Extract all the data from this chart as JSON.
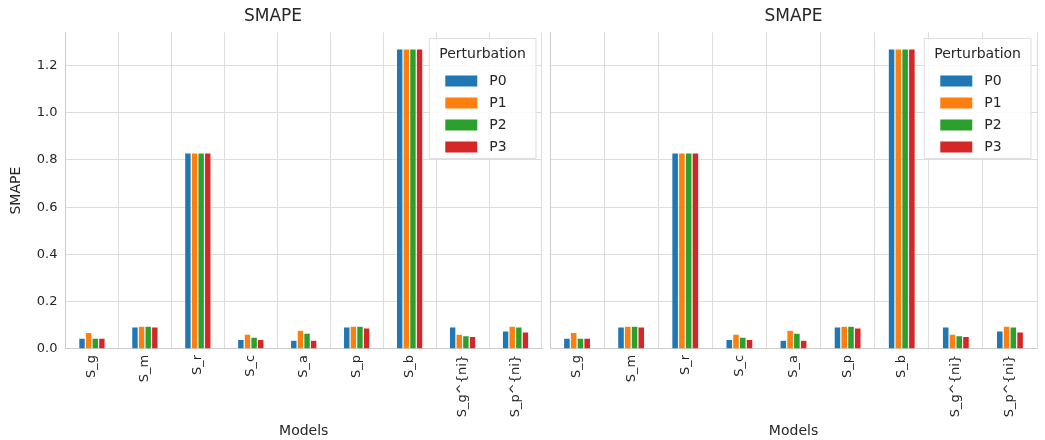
{
  "chart_data": [
    {
      "type": "bar",
      "title": "SMAPE",
      "xlabel": "Models",
      "ylabel": "SMAPE",
      "legend_title": "Perturbation",
      "legend": "top right",
      "grid": true,
      "categories": [
        "S_g",
        "S_m",
        "S_r",
        "S_c",
        "S_a",
        "S_p",
        "S_b",
        "S_g^{ni}",
        "S_p^{ni}"
      ],
      "ylim": [
        0,
        1.34
      ],
      "yticks": [
        {
          "value": 0,
          "label": "0.0"
        },
        0.2,
        0.4,
        0.6,
        0.8,
        {
          "value": 1,
          "label": "1.0"
        },
        1.2
      ],
      "series": [
        {
          "name": "P0",
          "color": "#1f77b4",
          "values": [
            0.046,
            0.093,
            0.83,
            0.04,
            0.037,
            0.093,
            1.27,
            0.093,
            0.076
          ]
        },
        {
          "name": "P1",
          "color": "#ff7f0e",
          "values": [
            0.07,
            0.096,
            0.83,
            0.063,
            0.079,
            0.096,
            1.27,
            0.063,
            0.096
          ]
        },
        {
          "name": "P2",
          "color": "#2ca02c",
          "values": [
            0.046,
            0.096,
            0.83,
            0.05,
            0.067,
            0.096,
            1.27,
            0.056,
            0.093
          ]
        },
        {
          "name": "P3",
          "color": "#d62728",
          "values": [
            0.046,
            0.093,
            0.83,
            0.04,
            0.037,
            0.089,
            1.27,
            0.053,
            0.072
          ]
        }
      ]
    },
    {
      "type": "bar",
      "title": "SMAPE",
      "xlabel": "Models",
      "legend_title": "Perturbation",
      "legend": "top right",
      "grid": true,
      "tick_labels": "x",
      "categories": [
        "S_g",
        "S_m",
        "S_r",
        "S_c",
        "S_a",
        "S_p",
        "S_b",
        "S_g^{ni}",
        "S_p^{ni}"
      ],
      "ylim": [
        0,
        1.34
      ],
      "yticks": [
        0,
        0.2,
        0.4,
        0.6,
        0.8,
        1,
        1.2
      ],
      "series": [
        {
          "name": "P0",
          "color": "#1f77b4",
          "values": [
            0.046,
            0.093,
            0.83,
            0.04,
            0.037,
            0.093,
            1.27,
            0.093,
            0.076
          ]
        },
        {
          "name": "P1",
          "color": "#ff7f0e",
          "values": [
            0.07,
            0.096,
            0.83,
            0.063,
            0.079,
            0.096,
            1.27,
            0.063,
            0.096
          ]
        },
        {
          "name": "P2",
          "color": "#2ca02c",
          "values": [
            0.046,
            0.096,
            0.83,
            0.05,
            0.067,
            0.096,
            1.27,
            0.056,
            0.093
          ]
        },
        {
          "name": "P3",
          "color": "#d62728",
          "values": [
            0.046,
            0.093,
            0.83,
            0.04,
            0.037,
            0.089,
            1.27,
            0.053,
            0.072
          ]
        }
      ]
    }
  ]
}
